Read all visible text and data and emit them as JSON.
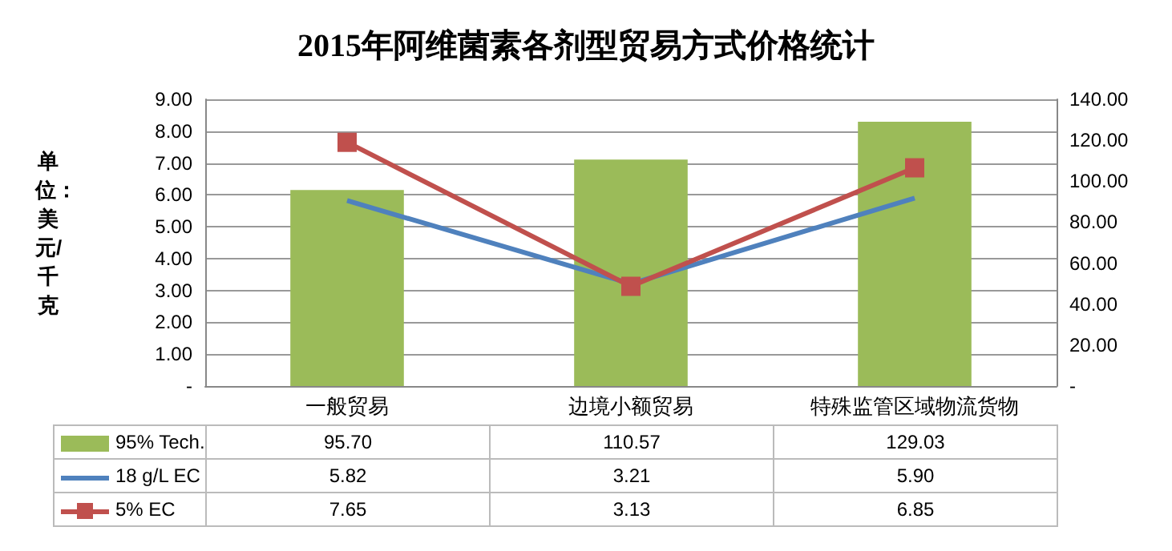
{
  "chart_data": {
    "type": "bar",
    "title": "2015年阿维菌素各剂型贸易方式价格统计",
    "ylabel": "单位：美元/千克",
    "categories": [
      "一般贸易",
      "边境小额贸易",
      "特殊监管区域物流货物"
    ],
    "series": [
      {
        "name": "95% Tech.",
        "axis": "y2",
        "color": "#9bbb59",
        "values": [
          95.7,
          110.57,
          129.03
        ],
        "value_labels": [
          "95.70",
          "110.57",
          "129.03"
        ]
      },
      {
        "name": "18 g/L EC",
        "type": "line",
        "color": "#4f81bd",
        "marker": "none",
        "values": [
          5.82,
          3.21,
          5.9
        ],
        "value_labels": [
          "5.82",
          "3.21",
          "5.90"
        ]
      },
      {
        "name": "5% EC",
        "type": "line",
        "color": "#c0504d",
        "marker": "square",
        "values": [
          7.65,
          3.13,
          6.85
        ],
        "value_labels": [
          "7.65",
          "3.13",
          "6.85"
        ]
      }
    ],
    "ylim": [
      0,
      9
    ],
    "yticks": [
      {
        "value": 0,
        "label": "-"
      },
      {
        "value": 1,
        "label": "1.00"
      },
      {
        "value": 2,
        "label": "2.00"
      },
      {
        "value": 3,
        "label": "3.00"
      },
      {
        "value": 4,
        "label": "4.00"
      },
      {
        "value": 5,
        "label": "5.00"
      },
      {
        "value": 6,
        "label": "6.00"
      },
      {
        "value": 7,
        "label": "7.00"
      },
      {
        "value": 8,
        "label": "8.00"
      },
      {
        "value": 9,
        "label": "9.00"
      }
    ],
    "y2lim": [
      0,
      140
    ],
    "y2ticks": [
      {
        "value": 0,
        "label": "-"
      },
      {
        "value": 20,
        "label": "20.00"
      },
      {
        "value": 40,
        "label": "40.00"
      },
      {
        "value": 60,
        "label": "60.00"
      },
      {
        "value": 80,
        "label": "80.00"
      },
      {
        "value": 100,
        "label": "100.00"
      },
      {
        "value": 120,
        "label": "120.00"
      },
      {
        "value": 140,
        "label": "140.00"
      }
    ],
    "grid": "y",
    "legend": "bottom",
    "data_labels": true
  }
}
